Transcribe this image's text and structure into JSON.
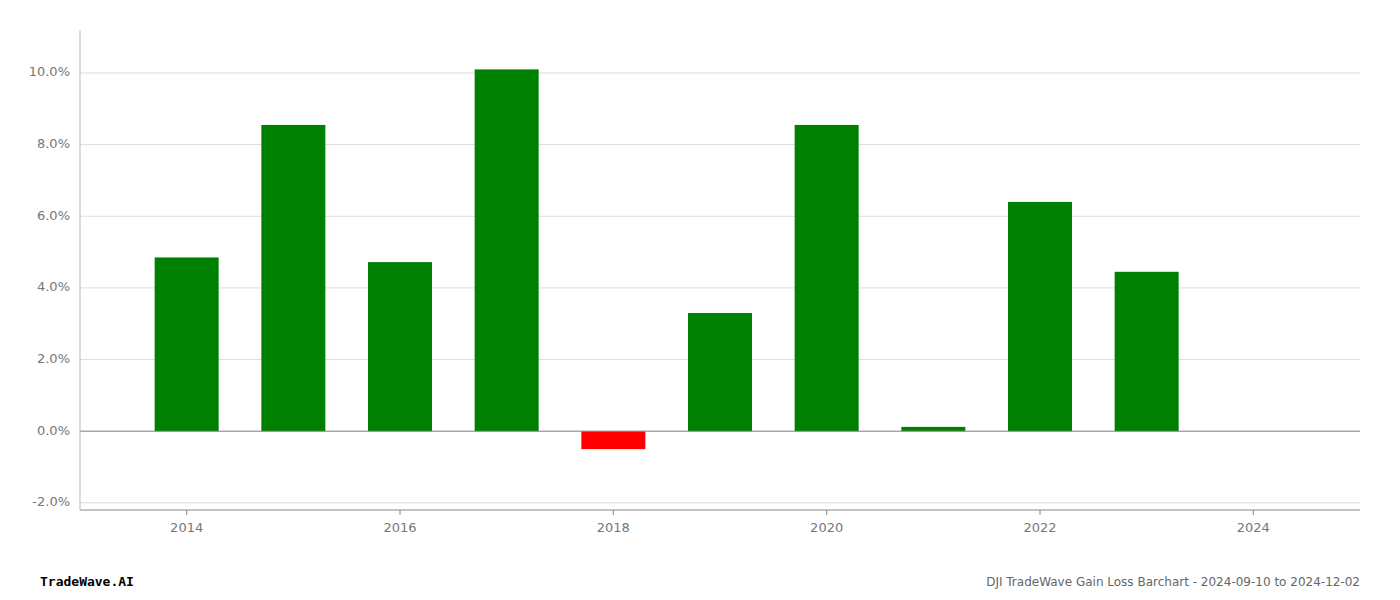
{
  "chart_data": {
    "type": "bar",
    "title": "DJI TradeWave Gain Loss Barchart - 2024-09-10 to 2024-12-02",
    "annotations": [
      "TradeWave.AI"
    ],
    "x": [
      2014,
      2015,
      2016,
      2017,
      2018,
      2019,
      2020,
      2021,
      2022,
      2023
    ],
    "values": [
      0.0485,
      0.0855,
      0.0472,
      0.101,
      -0.005,
      0.033,
      0.0855,
      0.0012,
      0.064,
      0.0445
    ],
    "colors": [
      "#008000",
      "#008000",
      "#008000",
      "#008000",
      "#ff0000",
      "#008000",
      "#008000",
      "#008000",
      "#008000",
      "#008000"
    ],
    "xlim": [
      2013.0,
      2025.0
    ],
    "xticks": [
      2014,
      2016,
      2018,
      2020,
      2022,
      2024
    ],
    "ylim": [
      -0.022,
      0.112
    ],
    "yticks": [
      {
        "value": -0.02,
        "label": "-2.0%"
      },
      {
        "value": 0.0,
        "label": "0.0%"
      },
      {
        "value": 0.02,
        "label": "2.0%"
      },
      {
        "value": 0.04,
        "label": "4.0%"
      },
      {
        "value": 0.06,
        "label": "6.0%"
      },
      {
        "value": 0.08,
        "label": "8.0%"
      },
      {
        "value": 0.1,
        "label": "10.0%"
      }
    ],
    "grid": true
  }
}
